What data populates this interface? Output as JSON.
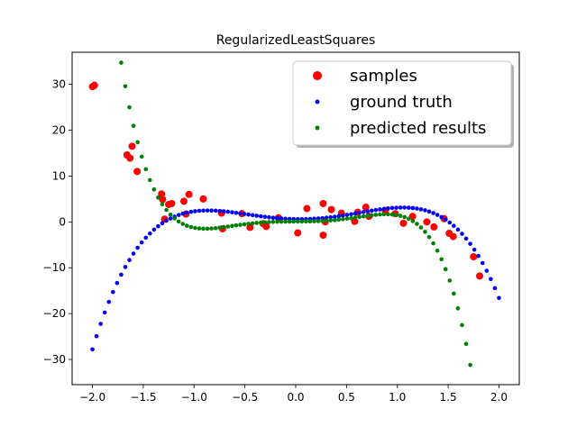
{
  "chart_data": {
    "type": "scatter",
    "title": "RegularizedLeastSquares",
    "xlabel": "",
    "ylabel": "",
    "xlim": [
      -2.2,
      2.2
    ],
    "ylim": [
      -35.5,
      37
    ],
    "xticks": [
      -2.0,
      -1.5,
      -1.0,
      -0.5,
      0.0,
      0.5,
      1.0,
      1.5,
      2.0
    ],
    "xtick_labels": [
      "−2.0",
      "−1.5",
      "−1.0",
      "−0.5",
      "0.0",
      "0.5",
      "1.0",
      "1.5",
      "2.0"
    ],
    "yticks": [
      30,
      20,
      10,
      0,
      -10,
      -20,
      -30
    ],
    "ytick_labels": [
      "30",
      "20",
      "10",
      "0",
      "−10",
      "−20",
      "−30"
    ],
    "grid": false,
    "legend_position": "top-right",
    "series": [
      {
        "name": "samples",
        "color": "#ff0000",
        "marker": "large-dot",
        "points": [
          [
            -2.0,
            29.5
          ],
          [
            -1.98,
            29.8
          ],
          [
            -1.66,
            14.6
          ],
          [
            -1.61,
            16.5
          ],
          [
            -1.63,
            13.9
          ],
          [
            -1.56,
            11.0
          ],
          [
            -1.32,
            6.1
          ],
          [
            -1.31,
            4.9
          ],
          [
            -1.29,
            0.6
          ],
          [
            -1.25,
            3.8
          ],
          [
            -1.22,
            4.0
          ],
          [
            -1.1,
            4.5
          ],
          [
            -1.08,
            1.7
          ],
          [
            -1.05,
            6.0
          ],
          [
            -0.91,
            5.0
          ],
          [
            -0.73,
            1.9
          ],
          [
            -0.72,
            -1.5
          ],
          [
            -0.53,
            1.8
          ],
          [
            -0.45,
            -1.2
          ],
          [
            -0.32,
            -0.4
          ],
          [
            -0.29,
            -1.0
          ],
          [
            -0.17,
            0.9
          ],
          [
            0.02,
            -2.4
          ],
          [
            0.11,
            2.9
          ],
          [
            0.27,
            4.0
          ],
          [
            0.27,
            -2.9
          ],
          [
            0.29,
            0.0
          ],
          [
            0.35,
            2.7
          ],
          [
            0.45,
            1.9
          ],
          [
            0.58,
            0.1
          ],
          [
            0.61,
            2.1
          ],
          [
            0.69,
            3.2
          ],
          [
            0.72,
            1.2
          ],
          [
            0.88,
            2.5
          ],
          [
            0.98,
            1.8
          ],
          [
            1.06,
            -0.3
          ],
          [
            1.15,
            1.2
          ],
          [
            1.29,
            0.0
          ],
          [
            1.36,
            -1.1
          ],
          [
            1.46,
            0.7
          ],
          [
            1.51,
            -2.5
          ],
          [
            1.55,
            -3.2
          ],
          [
            1.75,
            -7.6
          ],
          [
            1.81,
            -11.8
          ]
        ]
      },
      {
        "name": "ground truth",
        "color": "#0000ff",
        "marker": "small-dot",
        "curve": {
          "x_range": [
            -2.0,
            2.0
          ],
          "count": 100,
          "poly_coeffs_desc": [
            -2.6,
            0.8,
            4.7,
            -0.4,
            0.6
          ],
          "comment_ok": ""
        }
      },
      {
        "name": "predicted results",
        "color": "#008000",
        "marker": "small-dot",
        "curve": {
          "x_range": [
            -2.0,
            2.0
          ],
          "count": 100,
          "poly_coeffs_desc": [
            0.125,
            -4.0,
            -0.21,
            5.24,
            0.1,
            0.13,
            0.08
          ]
        }
      }
    ]
  }
}
